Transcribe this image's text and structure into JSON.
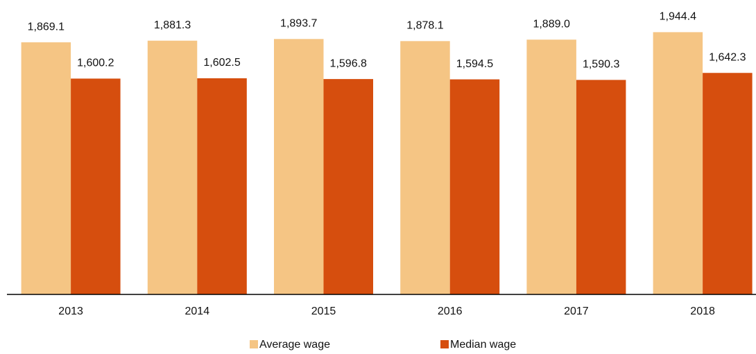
{
  "chart_data": {
    "type": "bar",
    "categories": [
      "2013",
      "2014",
      "2015",
      "2016",
      "2017",
      "2018"
    ],
    "series": [
      {
        "name": "Average wage",
        "color": "#f5c584",
        "values": [
          1869.1,
          1881.3,
          1893.7,
          1878.1,
          1889.0,
          1944.4
        ],
        "value_labels": [
          "1,869.1",
          "1,881.3",
          "1,893.7",
          "1,878.1",
          "1,889.0",
          "1,944.4"
        ]
      },
      {
        "name": "Median wage",
        "color": "#d64e0e",
        "values": [
          1600.2,
          1602.5,
          1596.8,
          1594.5,
          1590.3,
          1642.3
        ],
        "value_labels": [
          "1,600.2",
          "1,602.5",
          "1,596.8",
          "1,594.5",
          "1,590.3",
          "1,642.3"
        ]
      }
    ],
    "ylim": [
      0,
      2000
    ],
    "legend": "bottom"
  }
}
